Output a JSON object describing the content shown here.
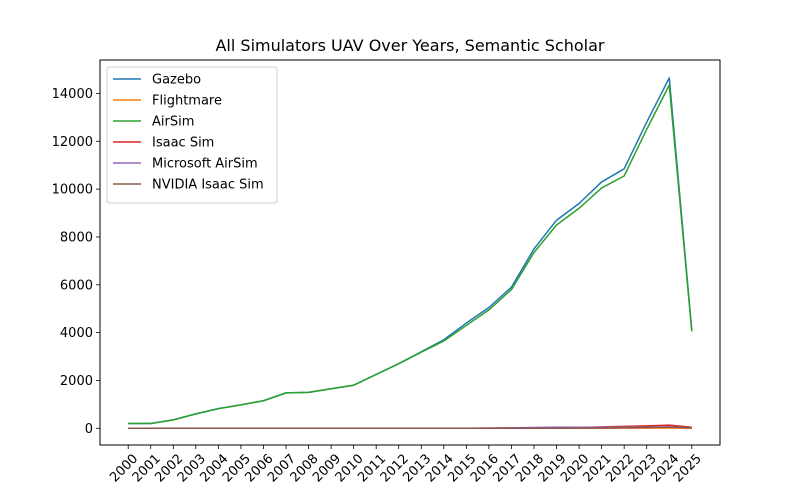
{
  "chart_data": {
    "type": "line",
    "title": "All Simulators UAV Over Years, Semantic Scholar",
    "xlabel": "",
    "ylabel": "",
    "x": [
      "2000",
      "2001",
      "2002",
      "2003",
      "2004",
      "2005",
      "2006",
      "2007",
      "2008",
      "2009",
      "2010",
      "2011",
      "2012",
      "2013",
      "2014",
      "2015",
      "2016",
      "2017",
      "2018",
      "2019",
      "2020",
      "2021",
      "2022",
      "2023",
      "2024",
      "2025"
    ],
    "ylim": [
      -700,
      15400
    ],
    "yticks": [
      0,
      2000,
      4000,
      6000,
      8000,
      10000,
      12000,
      14000
    ],
    "grid": false,
    "legend_position": "upper-left",
    "series": [
      {
        "name": "Gazebo",
        "color": "#1f77b4",
        "values": [
          200,
          200,
          350,
          600,
          820,
          980,
          1150,
          1480,
          1500,
          1650,
          1800,
          2250,
          2700,
          3200,
          3700,
          4400,
          5050,
          5900,
          7500,
          8700,
          9400,
          10300,
          10850,
          12800,
          14650,
          4100
        ]
      },
      {
        "name": "Flightmare",
        "color": "#ff7f0e",
        "values": [
          0,
          0,
          0,
          0,
          0,
          0,
          0,
          0,
          0,
          0,
          0,
          0,
          0,
          0,
          0,
          0,
          0,
          0,
          0,
          1,
          2,
          3,
          4,
          5,
          6,
          2
        ]
      },
      {
        "name": "AirSim",
        "color": "#2ca02c",
        "values": [
          200,
          200,
          350,
          600,
          820,
          980,
          1150,
          1480,
          1500,
          1650,
          1800,
          2250,
          2700,
          3180,
          3650,
          4300,
          4950,
          5800,
          7350,
          8500,
          9200,
          10050,
          10550,
          12500,
          14350,
          4050
        ]
      },
      {
        "name": "Isaac Sim",
        "color": "#d62728",
        "values": [
          0,
          0,
          0,
          0,
          0,
          0,
          0,
          0,
          0,
          0,
          0,
          0,
          0,
          0,
          0,
          0,
          5,
          10,
          20,
          25,
          30,
          60,
          80,
          100,
          130,
          40
        ]
      },
      {
        "name": "Microsoft AirSim",
        "color": "#9467bd",
        "values": [
          0,
          0,
          0,
          0,
          0,
          0,
          0,
          0,
          0,
          0,
          0,
          0,
          0,
          0,
          0,
          0,
          5,
          15,
          30,
          50,
          40,
          40,
          40,
          50,
          60,
          20
        ]
      },
      {
        "name": "NVIDIA Isaac Sim",
        "color": "#8c564b",
        "values": [
          0,
          0,
          0,
          0,
          0,
          0,
          0,
          0,
          0,
          0,
          0,
          0,
          0,
          0,
          0,
          0,
          0,
          0,
          0,
          2,
          5,
          10,
          20,
          30,
          45,
          15
        ]
      }
    ]
  }
}
